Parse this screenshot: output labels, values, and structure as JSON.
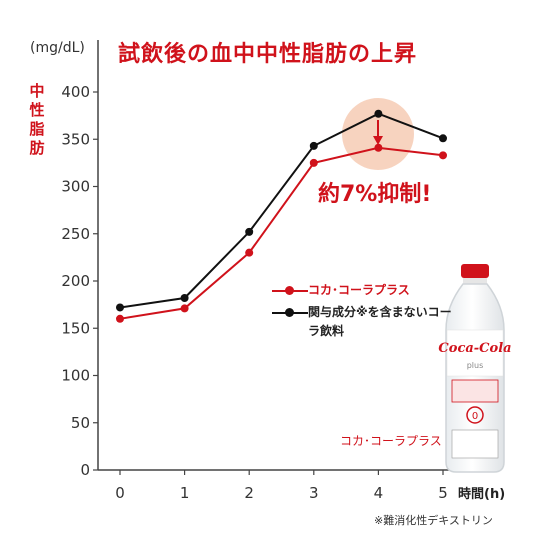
{
  "title": "試飲後の血中中性脂肪の上昇",
  "unit_label": "(mg/dL)",
  "y_axis_label": "中性脂肪",
  "x_axis_label": "時間(h)",
  "annotation": "約7%抑制!",
  "bottle_label": "コカ･コーラプラス",
  "bottle_brand": "Coca-Cola plus",
  "footnote": "※難消化性デキストリン",
  "colors": {
    "accent": "#d0121b",
    "series_red": "#d0121b",
    "series_black": "#111111",
    "highlight": "#f6cbb4"
  },
  "chart_data": {
    "type": "line",
    "title": "試飲後の血中中性脂肪の上昇",
    "xlabel": "時間(h)",
    "ylabel": "中性脂肪",
    "x": [
      0,
      1,
      2,
      3,
      4,
      5
    ],
    "y_ticks": [
      0,
      50,
      100,
      150,
      200,
      250,
      300,
      350,
      400
    ],
    "ylim": [
      0,
      400
    ],
    "grid": false,
    "legend_position": "center-right",
    "series": [
      {
        "name": "コカ･コーラプラス",
        "color": "#d0121b",
        "values": [
          160,
          171,
          230,
          325,
          341,
          333
        ]
      },
      {
        "name": "関与成分※を含まないコーラ飲料",
        "color": "#111111",
        "values": [
          172,
          182,
          252,
          343,
          377,
          351
        ]
      }
    ]
  }
}
